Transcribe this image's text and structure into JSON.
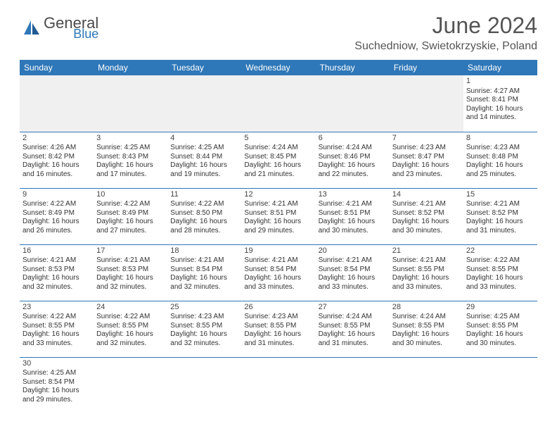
{
  "branding": {
    "logo_text_top": "General",
    "logo_text_bottom": "Blue",
    "logo_color_primary": "#2e77b8",
    "logo_color_secondary": "#4a4a4a"
  },
  "header": {
    "month_title": "June 2024",
    "location": "Suchedniow, Swietokrzyskie, Poland"
  },
  "styling": {
    "header_bg": "#2e77b8",
    "header_text": "#ffffff",
    "border_color": "#2e77b8",
    "blank_bg": "#f0f0f0",
    "page_bg": "#ffffff",
    "body_text": "#333333",
    "title_fontsize": 32,
    "location_fontsize": 16,
    "cell_fontsize": 10
  },
  "weekdays": [
    "Sunday",
    "Monday",
    "Tuesday",
    "Wednesday",
    "Thursday",
    "Friday",
    "Saturday"
  ],
  "weeks": [
    [
      null,
      null,
      null,
      null,
      null,
      null,
      {
        "day": "1",
        "sunrise": "Sunrise: 4:27 AM",
        "sunset": "Sunset: 8:41 PM",
        "daylight1": "Daylight: 16 hours",
        "daylight2": "and 14 minutes."
      }
    ],
    [
      {
        "day": "2",
        "sunrise": "Sunrise: 4:26 AM",
        "sunset": "Sunset: 8:42 PM",
        "daylight1": "Daylight: 16 hours",
        "daylight2": "and 16 minutes."
      },
      {
        "day": "3",
        "sunrise": "Sunrise: 4:25 AM",
        "sunset": "Sunset: 8:43 PM",
        "daylight1": "Daylight: 16 hours",
        "daylight2": "and 17 minutes."
      },
      {
        "day": "4",
        "sunrise": "Sunrise: 4:25 AM",
        "sunset": "Sunset: 8:44 PM",
        "daylight1": "Daylight: 16 hours",
        "daylight2": "and 19 minutes."
      },
      {
        "day": "5",
        "sunrise": "Sunrise: 4:24 AM",
        "sunset": "Sunset: 8:45 PM",
        "daylight1": "Daylight: 16 hours",
        "daylight2": "and 21 minutes."
      },
      {
        "day": "6",
        "sunrise": "Sunrise: 4:24 AM",
        "sunset": "Sunset: 8:46 PM",
        "daylight1": "Daylight: 16 hours",
        "daylight2": "and 22 minutes."
      },
      {
        "day": "7",
        "sunrise": "Sunrise: 4:23 AM",
        "sunset": "Sunset: 8:47 PM",
        "daylight1": "Daylight: 16 hours",
        "daylight2": "and 23 minutes."
      },
      {
        "day": "8",
        "sunrise": "Sunrise: 4:23 AM",
        "sunset": "Sunset: 8:48 PM",
        "daylight1": "Daylight: 16 hours",
        "daylight2": "and 25 minutes."
      }
    ],
    [
      {
        "day": "9",
        "sunrise": "Sunrise: 4:22 AM",
        "sunset": "Sunset: 8:49 PM",
        "daylight1": "Daylight: 16 hours",
        "daylight2": "and 26 minutes."
      },
      {
        "day": "10",
        "sunrise": "Sunrise: 4:22 AM",
        "sunset": "Sunset: 8:49 PM",
        "daylight1": "Daylight: 16 hours",
        "daylight2": "and 27 minutes."
      },
      {
        "day": "11",
        "sunrise": "Sunrise: 4:22 AM",
        "sunset": "Sunset: 8:50 PM",
        "daylight1": "Daylight: 16 hours",
        "daylight2": "and 28 minutes."
      },
      {
        "day": "12",
        "sunrise": "Sunrise: 4:21 AM",
        "sunset": "Sunset: 8:51 PM",
        "daylight1": "Daylight: 16 hours",
        "daylight2": "and 29 minutes."
      },
      {
        "day": "13",
        "sunrise": "Sunrise: 4:21 AM",
        "sunset": "Sunset: 8:51 PM",
        "daylight1": "Daylight: 16 hours",
        "daylight2": "and 30 minutes."
      },
      {
        "day": "14",
        "sunrise": "Sunrise: 4:21 AM",
        "sunset": "Sunset: 8:52 PM",
        "daylight1": "Daylight: 16 hours",
        "daylight2": "and 30 minutes."
      },
      {
        "day": "15",
        "sunrise": "Sunrise: 4:21 AM",
        "sunset": "Sunset: 8:52 PM",
        "daylight1": "Daylight: 16 hours",
        "daylight2": "and 31 minutes."
      }
    ],
    [
      {
        "day": "16",
        "sunrise": "Sunrise: 4:21 AM",
        "sunset": "Sunset: 8:53 PM",
        "daylight1": "Daylight: 16 hours",
        "daylight2": "and 32 minutes."
      },
      {
        "day": "17",
        "sunrise": "Sunrise: 4:21 AM",
        "sunset": "Sunset: 8:53 PM",
        "daylight1": "Daylight: 16 hours",
        "daylight2": "and 32 minutes."
      },
      {
        "day": "18",
        "sunrise": "Sunrise: 4:21 AM",
        "sunset": "Sunset: 8:54 PM",
        "daylight1": "Daylight: 16 hours",
        "daylight2": "and 32 minutes."
      },
      {
        "day": "19",
        "sunrise": "Sunrise: 4:21 AM",
        "sunset": "Sunset: 8:54 PM",
        "daylight1": "Daylight: 16 hours",
        "daylight2": "and 33 minutes."
      },
      {
        "day": "20",
        "sunrise": "Sunrise: 4:21 AM",
        "sunset": "Sunset: 8:54 PM",
        "daylight1": "Daylight: 16 hours",
        "daylight2": "and 33 minutes."
      },
      {
        "day": "21",
        "sunrise": "Sunrise: 4:21 AM",
        "sunset": "Sunset: 8:55 PM",
        "daylight1": "Daylight: 16 hours",
        "daylight2": "and 33 minutes."
      },
      {
        "day": "22",
        "sunrise": "Sunrise: 4:22 AM",
        "sunset": "Sunset: 8:55 PM",
        "daylight1": "Daylight: 16 hours",
        "daylight2": "and 33 minutes."
      }
    ],
    [
      {
        "day": "23",
        "sunrise": "Sunrise: 4:22 AM",
        "sunset": "Sunset: 8:55 PM",
        "daylight1": "Daylight: 16 hours",
        "daylight2": "and 33 minutes."
      },
      {
        "day": "24",
        "sunrise": "Sunrise: 4:22 AM",
        "sunset": "Sunset: 8:55 PM",
        "daylight1": "Daylight: 16 hours",
        "daylight2": "and 32 minutes."
      },
      {
        "day": "25",
        "sunrise": "Sunrise: 4:23 AM",
        "sunset": "Sunset: 8:55 PM",
        "daylight1": "Daylight: 16 hours",
        "daylight2": "and 32 minutes."
      },
      {
        "day": "26",
        "sunrise": "Sunrise: 4:23 AM",
        "sunset": "Sunset: 8:55 PM",
        "daylight1": "Daylight: 16 hours",
        "daylight2": "and 31 minutes."
      },
      {
        "day": "27",
        "sunrise": "Sunrise: 4:24 AM",
        "sunset": "Sunset: 8:55 PM",
        "daylight1": "Daylight: 16 hours",
        "daylight2": "and 31 minutes."
      },
      {
        "day": "28",
        "sunrise": "Sunrise: 4:24 AM",
        "sunset": "Sunset: 8:55 PM",
        "daylight1": "Daylight: 16 hours",
        "daylight2": "and 30 minutes."
      },
      {
        "day": "29",
        "sunrise": "Sunrise: 4:25 AM",
        "sunset": "Sunset: 8:55 PM",
        "daylight1": "Daylight: 16 hours",
        "daylight2": "and 30 minutes."
      }
    ],
    [
      {
        "day": "30",
        "sunrise": "Sunrise: 4:25 AM",
        "sunset": "Sunset: 8:54 PM",
        "daylight1": "Daylight: 16 hours",
        "daylight2": "and 29 minutes."
      },
      null,
      null,
      null,
      null,
      null,
      null
    ]
  ]
}
